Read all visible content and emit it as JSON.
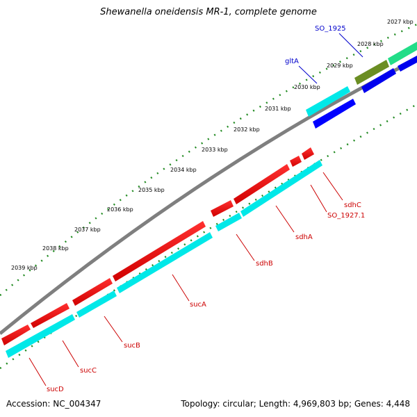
{
  "title": "Shewanella oneidensis MR-1, complete genome",
  "footer": {
    "accession": "Accession: NC_004347",
    "summary": "Topology: circular; Length: 4,969,803 bp; Genes: 4,448"
  },
  "ticks": [
    "2027 kbp",
    "2028 kbp",
    "2029 kbp",
    "2030 kbp",
    "2031 kbp",
    "2032 kbp",
    "2033 kbp",
    "2034 kbp",
    "2035 kbp",
    "2036 kbp",
    "2037 kbp",
    "2038 kbp",
    "2039 kbp"
  ],
  "genes": [
    {
      "name": "SO_1925",
      "color": "#0000cc"
    },
    {
      "name": "gltA",
      "color": "#0000cc"
    },
    {
      "name": "sdhC",
      "color": "#cc0000"
    },
    {
      "name": "SO_1927.1",
      "color": "#cc0000"
    },
    {
      "name": "sdhA",
      "color": "#cc0000"
    },
    {
      "name": "sdhB",
      "color": "#cc0000"
    },
    {
      "name": "sucA",
      "color": "#cc0000"
    },
    {
      "name": "sucB",
      "color": "#cc0000"
    },
    {
      "name": "sucC",
      "color": "#cc0000"
    },
    {
      "name": "sucD",
      "color": "#cc0000"
    }
  ],
  "colors": {
    "red_feature": "#ff0000",
    "cyan_feature": "#00ffff",
    "blue_feature": "#0000ff",
    "olive_feature": "#6b8e23",
    "green_feature": "#22dd88",
    "backbone": "#808080",
    "tick_marks": "#228b22"
  }
}
